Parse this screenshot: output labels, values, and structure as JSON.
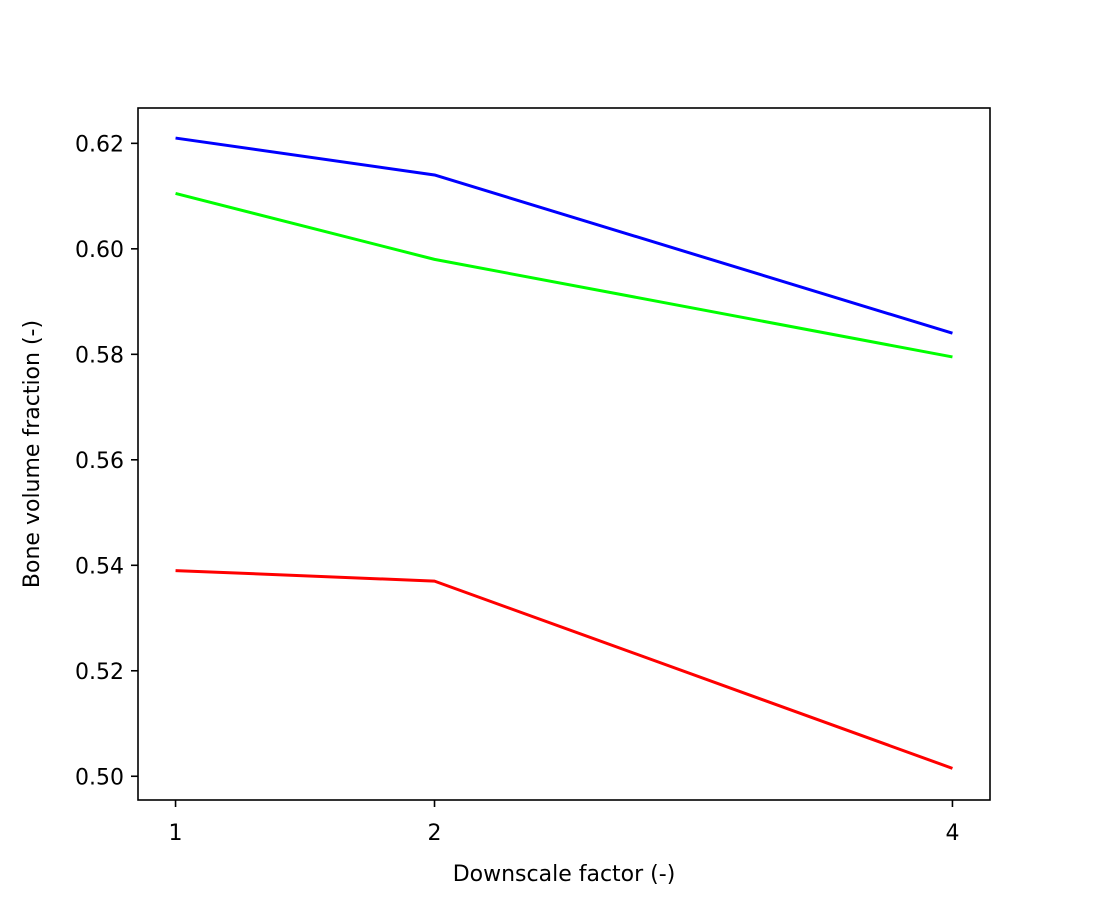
{
  "chart_data": {
    "type": "line",
    "title": "",
    "xlabel": "Downscale factor (-)",
    "ylabel": "Bone volume fraction (-)",
    "x": [
      1,
      2,
      4
    ],
    "x_ticks": [
      1,
      2,
      4
    ],
    "x_tick_labels": [
      "1",
      "2",
      "4"
    ],
    "xlim": [
      0.855,
      4.145
    ],
    "ylim": [
      0.4955,
      0.6267
    ],
    "y_ticks": [
      0.5,
      0.52,
      0.54,
      0.56,
      0.58,
      0.6,
      0.62
    ],
    "y_tick_labels": [
      "0.50",
      "0.52",
      "0.54",
      "0.56",
      "0.58",
      "0.60",
      "0.62"
    ],
    "grid": false,
    "legend": "none",
    "series": [
      {
        "color": "#0000ff",
        "values": [
          0.621,
          0.614,
          0.584
        ]
      },
      {
        "color": "#00ff00",
        "values": [
          0.6105,
          0.598,
          0.5795
        ]
      },
      {
        "color": "#ff0000",
        "values": [
          0.539,
          0.537,
          0.5015
        ]
      }
    ]
  }
}
